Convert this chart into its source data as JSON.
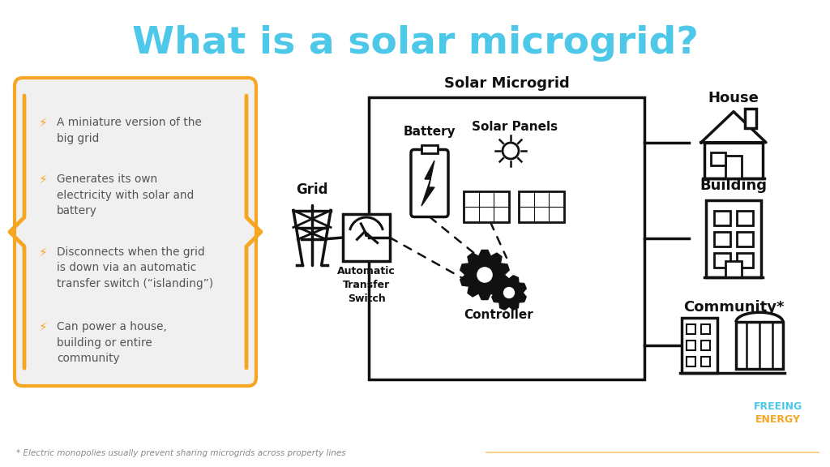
{
  "title": "What is a solar microgrid?",
  "title_color": "#4DC8E8",
  "bg_color": "#FFFFFF",
  "bullet_color": "#F5A623",
  "text_color": "#555555",
  "box_bg": "#F0F0F0",
  "box_border": "#F5A623",
  "line_color": "#111111",
  "footnote": "* Electric monopolies usually prevent sharing microgrids across property lines",
  "freeing_color": "#4DC8E8",
  "energy_color": "#F5A623",
  "bullets": [
    "A miniature version of the\nbig grid",
    "Generates its own\nelectricity with solar and\nbattery",
    "Disconnects when the grid\nis down via an automatic\ntransfer switch (“islanding”)",
    "Can power a house,\nbuilding or entire\ncommunity"
  ]
}
